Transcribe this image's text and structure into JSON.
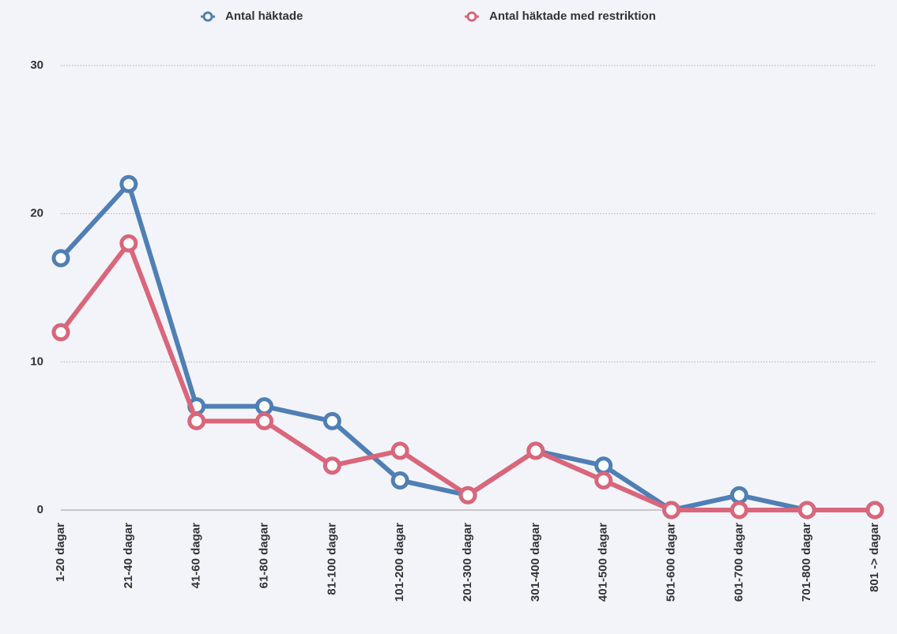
{
  "chart_data": {
    "type": "line",
    "categories": [
      "1-20 dagar",
      "21-40 dagar",
      "41-60 dagar",
      "61-80 dagar",
      "81-100 dagar",
      "101-200 dagar",
      "201-300 dagar",
      "301-400 dagar",
      "401-500 dagar",
      "501-600 dagar",
      "601-700 dagar",
      "701-800 dagar",
      "801 -> dagar"
    ],
    "series": [
      {
        "name": "Antal häktade",
        "color": "#4f7fb5",
        "values": [
          17,
          22,
          7,
          7,
          6,
          2,
          1,
          4,
          3,
          0,
          1,
          0,
          0
        ]
      },
      {
        "name": "Antal häktade med restriktion",
        "color": "#d9667a",
        "values": [
          12,
          18,
          6,
          6,
          3,
          4,
          1,
          4,
          2,
          0,
          0,
          0,
          0
        ]
      }
    ],
    "ylim": [
      0,
      30
    ],
    "yticks": [
      0,
      10,
      20,
      30
    ],
    "grid": true,
    "legend": "top"
  }
}
